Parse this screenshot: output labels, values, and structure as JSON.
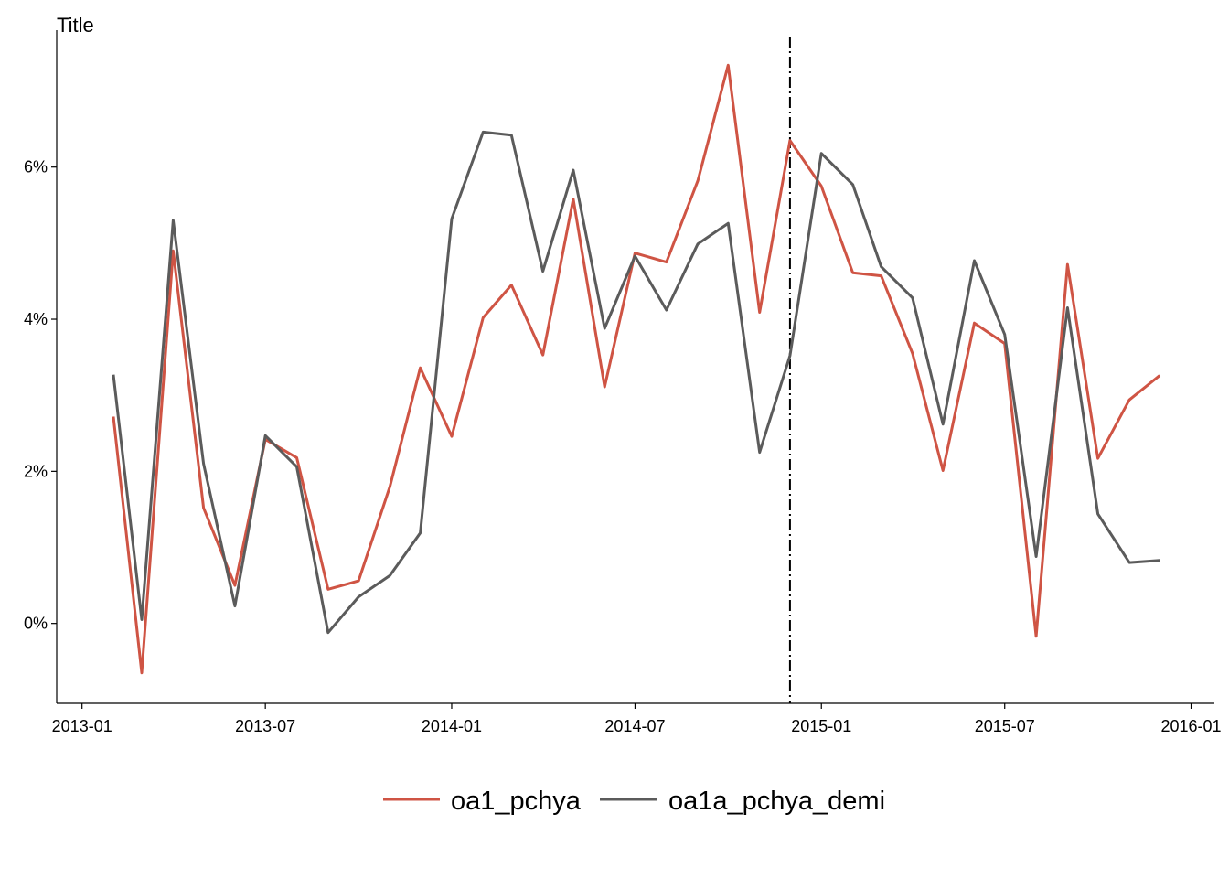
{
  "chart_data": {
    "type": "line",
    "title": "Title",
    "xlabel": "",
    "ylabel": "",
    "x_tick_labels": [
      "2013-01",
      "2013-07",
      "2014-01",
      "2014-07",
      "2015-01",
      "2015-07",
      "2016-01"
    ],
    "y_tick_labels": [
      "0%",
      "2%",
      "4%",
      "6%"
    ],
    "y_tick_values": [
      0,
      2,
      4,
      6
    ],
    "ylim": [
      -1.05,
      7.8
    ],
    "xlim": [
      "2012-12-07",
      "2016-01-24"
    ],
    "grid": false,
    "legend_position": "bottom",
    "vline": {
      "x": "2014-12-01",
      "style": "dash-dot"
    },
    "x": [
      "2013-02-01",
      "2013-03-01",
      "2013-04-01",
      "2013-05-01",
      "2013-06-01",
      "2013-07-01",
      "2013-08-01",
      "2013-09-01",
      "2013-10-01",
      "2013-11-01",
      "2013-12-01",
      "2014-01-01",
      "2014-02-01",
      "2014-03-01",
      "2014-04-01",
      "2014-05-01",
      "2014-06-01",
      "2014-07-01",
      "2014-08-01",
      "2014-09-01",
      "2014-10-01",
      "2014-11-01",
      "2014-12-01",
      "2015-01-01",
      "2015-02-01",
      "2015-03-01",
      "2015-04-01",
      "2015-05-01",
      "2015-06-01",
      "2015-07-01",
      "2015-08-01",
      "2015-09-01",
      "2015-10-01",
      "2015-11-01",
      "2015-12-01"
    ],
    "series": [
      {
        "name": "oa1_pchya",
        "color": "#cf5444",
        "values": [
          2.72,
          -0.65,
          4.9,
          1.52,
          0.5,
          2.42,
          2.18,
          0.45,
          0.56,
          1.8,
          3.36,
          2.46,
          4.02,
          4.45,
          3.53,
          5.58,
          3.11,
          4.87,
          4.75,
          5.82,
          7.34,
          4.09,
          6.35,
          5.75,
          4.61,
          4.57,
          3.55,
          2.01,
          3.95,
          3.68,
          -0.17,
          4.72,
          2.17,
          2.94,
          3.26
        ]
      },
      {
        "name": "oa1a_pchya_demi",
        "color": "#5b5b5b",
        "values": [
          3.27,
          0.05,
          5.3,
          2.1,
          0.23,
          2.47,
          2.06,
          -0.12,
          0.35,
          0.63,
          1.19,
          5.32,
          6.46,
          6.42,
          4.63,
          5.96,
          3.88,
          4.83,
          4.12,
          4.99,
          5.26,
          2.25,
          3.52,
          6.18,
          5.77,
          4.69,
          4.28,
          2.62,
          4.77,
          3.8,
          0.88,
          4.15,
          1.44,
          0.8,
          0.83
        ]
      }
    ]
  }
}
